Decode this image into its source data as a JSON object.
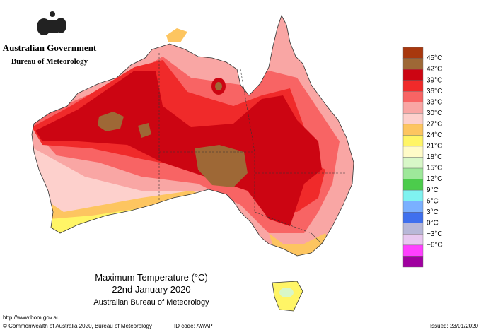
{
  "header": {
    "government": "Australian Government",
    "bureau": "Bureau of Meteorology"
  },
  "map": {
    "title": "Maximum Temperature (°C)",
    "date": "22nd January 2020",
    "agency": "Australian Bureau of Meteorology"
  },
  "legend": {
    "labels": [
      "45°C",
      "42°C",
      "39°C",
      "36°C",
      "33°C",
      "30°C",
      "27°C",
      "24°C",
      "21°C",
      "18°C",
      "15°C",
      "12°C",
      "9°C",
      "6°C",
      "3°C",
      "0°C",
      "−3°C",
      "−6°C"
    ],
    "colors": [
      "#a8380e",
      "#9e6836",
      "#cc0512",
      "#f02a2a",
      "#f86464",
      "#f9a6a4",
      "#fdd0cc",
      "#fdc560",
      "#fff566",
      "#fffbc8",
      "#d8f7c8",
      "#9ee89a",
      "#4ccc4c",
      "#7ff2f0",
      "#7ab0ff",
      "#3f70ee",
      "#b8b8d8",
      "#e8c8f0",
      "#ff40ff",
      "#a000a0"
    ]
  },
  "footer": {
    "url": "http://www.bom.gov.au",
    "copyright": "© Commonwealth of Australia 2020, Bureau of Meteorology",
    "id_code": "ID code: AWAP",
    "issued": "Issued: 23/01/2020"
  }
}
